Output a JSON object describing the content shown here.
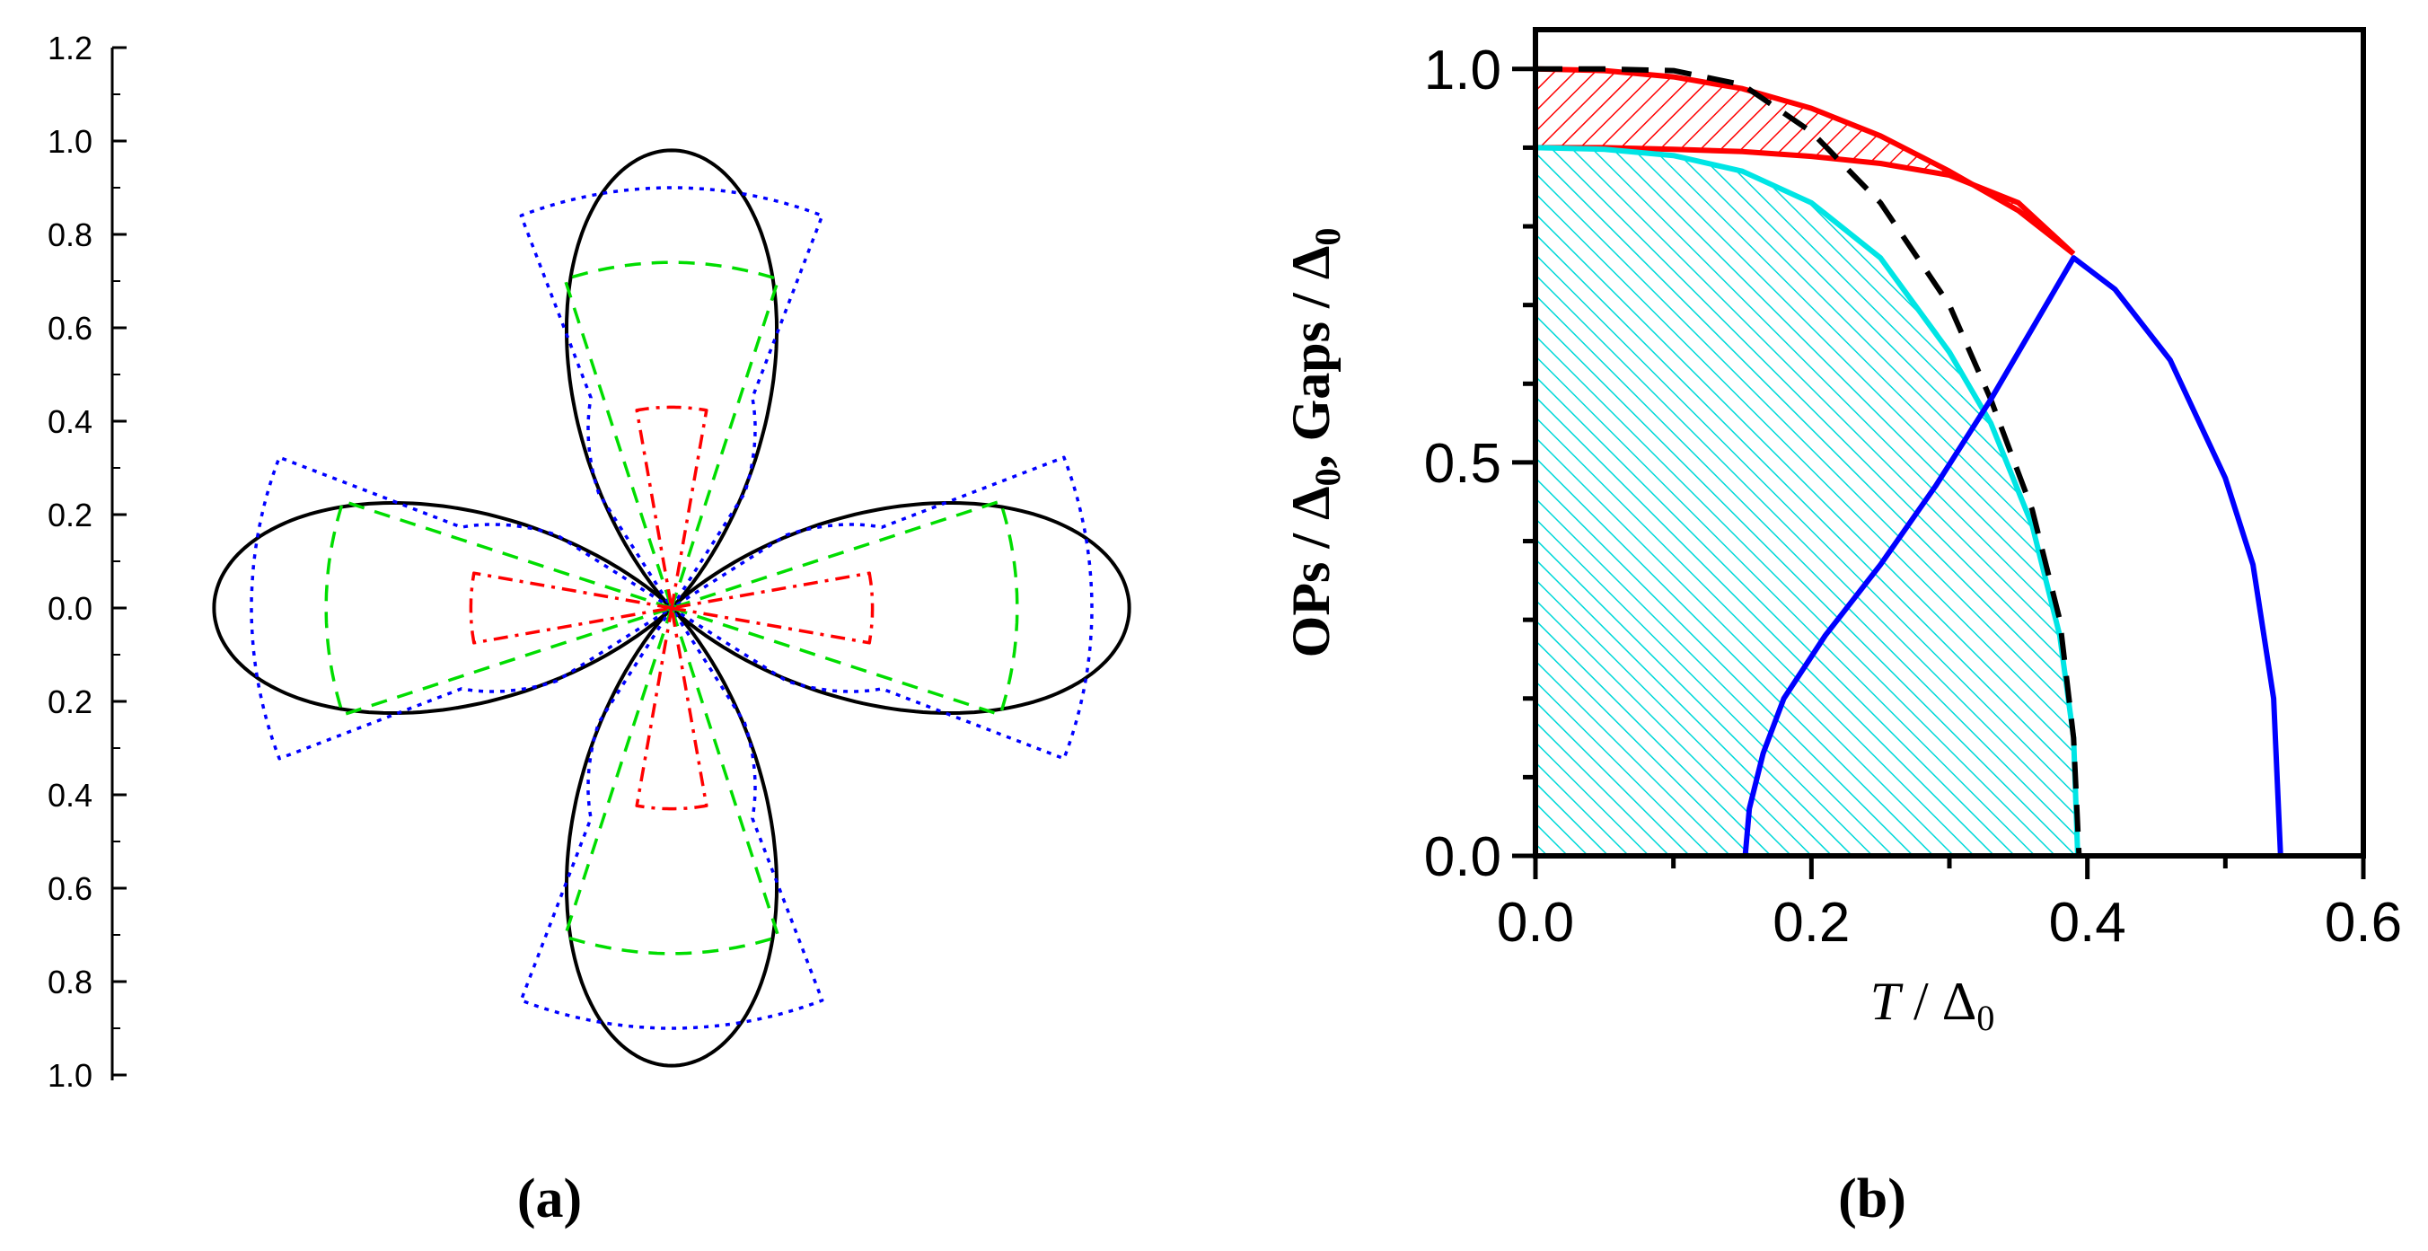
{
  "panel_labels": {
    "a": "(a)",
    "b": "(b)"
  },
  "chart_data": [
    {
      "type": "polar",
      "panel": "(a)",
      "title": "",
      "radial_tick_labels": [
        "1.2",
        "1.0",
        "0.8",
        "0.6",
        "0.4",
        "0.2",
        "0.0",
        "0.2",
        "0.4",
        "0.6",
        "0.8",
        "1.0"
      ],
      "radial_tick_values": [
        1.2,
        1.0,
        0.8,
        0.6,
        0.4,
        0.2,
        0.0,
        -0.2,
        -0.4,
        -0.6,
        -0.8,
        -1.0
      ],
      "series": [
        {
          "name": "black-solid",
          "color": "#000000",
          "style": "solid",
          "shape": "four-lobe",
          "max_radius": 0.98
        },
        {
          "name": "blue-dotted",
          "color": "#0000ff",
          "style": "dotted",
          "shape": "truncated-lobes",
          "outer_radius": 0.9,
          "cut_radius": 0.63,
          "wedge_half_angle_deg": 21
        },
        {
          "name": "green-dashed",
          "color": "#00dd00",
          "style": "dashed",
          "shape": "sector",
          "radius": 0.74,
          "wedge_half_angle_deg": 18
        },
        {
          "name": "red-dashdot",
          "color": "#ff0000",
          "style": "dashdot",
          "shape": "sector",
          "radius": 0.43,
          "wedge_half_angle_deg": 10
        }
      ]
    },
    {
      "type": "line",
      "panel": "(b)",
      "title": "",
      "xlabel_main": "T",
      "xlabel_sep": " / Δ",
      "xlabel_sub": "0",
      "ylabel_parts": [
        "OPs / Δ",
        "0",
        ", Gaps / Δ",
        "0"
      ],
      "xlim": [
        0.0,
        0.6
      ],
      "ylim": [
        0.0,
        1.05
      ],
      "x_ticks": [
        0.0,
        0.2,
        0.4,
        0.6
      ],
      "x_tick_labels": [
        "0.0",
        "0.2",
        "0.4",
        "0.6"
      ],
      "y_ticks": [
        0.0,
        0.5,
        1.0
      ],
      "y_tick_labels": [
        "0.0",
        "0.5",
        "1.0"
      ],
      "series": [
        {
          "name": "red-solid",
          "color": "#ff0000",
          "style": "solid",
          "x": [
            0.0,
            0.05,
            0.1,
            0.15,
            0.2,
            0.25,
            0.3,
            0.35,
            0.39
          ],
          "y": [
            1.0,
            0.998,
            0.99,
            0.975,
            0.95,
            0.915,
            0.87,
            0.82,
            0.765
          ]
        },
        {
          "name": "red-inner",
          "color": "#ff0000",
          "style": "solid",
          "x": [
            0.0,
            0.05,
            0.1,
            0.15,
            0.2,
            0.25,
            0.3,
            0.35,
            0.39
          ],
          "y": [
            0.9,
            0.9,
            0.898,
            0.895,
            0.889,
            0.88,
            0.865,
            0.83,
            0.765
          ]
        },
        {
          "name": "cyan-solid",
          "color": "#00e5e5",
          "style": "solid",
          "x": [
            0.0,
            0.05,
            0.1,
            0.15,
            0.2,
            0.25,
            0.3,
            0.33,
            0.36,
            0.38,
            0.39,
            0.393
          ],
          "y": [
            0.9,
            0.898,
            0.89,
            0.87,
            0.83,
            0.76,
            0.64,
            0.55,
            0.42,
            0.28,
            0.15,
            0.0
          ]
        },
        {
          "name": "black-dashed",
          "color": "#000000",
          "style": "dashed",
          "x": [
            0.0,
            0.05,
            0.1,
            0.15,
            0.2,
            0.25,
            0.3,
            0.33,
            0.36,
            0.38,
            0.39,
            0.394
          ],
          "y": [
            1.0,
            1.0,
            0.998,
            0.98,
            0.92,
            0.83,
            0.7,
            0.58,
            0.44,
            0.3,
            0.15,
            0.0
          ]
        },
        {
          "name": "blue-solid",
          "color": "#0000ff",
          "style": "solid",
          "x": [
            0.152,
            0.155,
            0.165,
            0.18,
            0.21,
            0.25,
            0.29,
            0.33,
            0.36,
            0.39,
            0.42,
            0.46,
            0.5,
            0.52,
            0.535,
            0.54
          ],
          "y": [
            0.0,
            0.06,
            0.13,
            0.2,
            0.28,
            0.37,
            0.47,
            0.58,
            0.67,
            0.76,
            0.72,
            0.63,
            0.48,
            0.37,
            0.2,
            0.0
          ]
        }
      ],
      "shaded_regions": [
        {
          "name": "red-hatch",
          "color": "#ff0000",
          "between": [
            "red-solid",
            "red-inner"
          ]
        },
        {
          "name": "cyan-hatch",
          "color": "#00e5e5",
          "under": "cyan-solid"
        }
      ]
    }
  ]
}
